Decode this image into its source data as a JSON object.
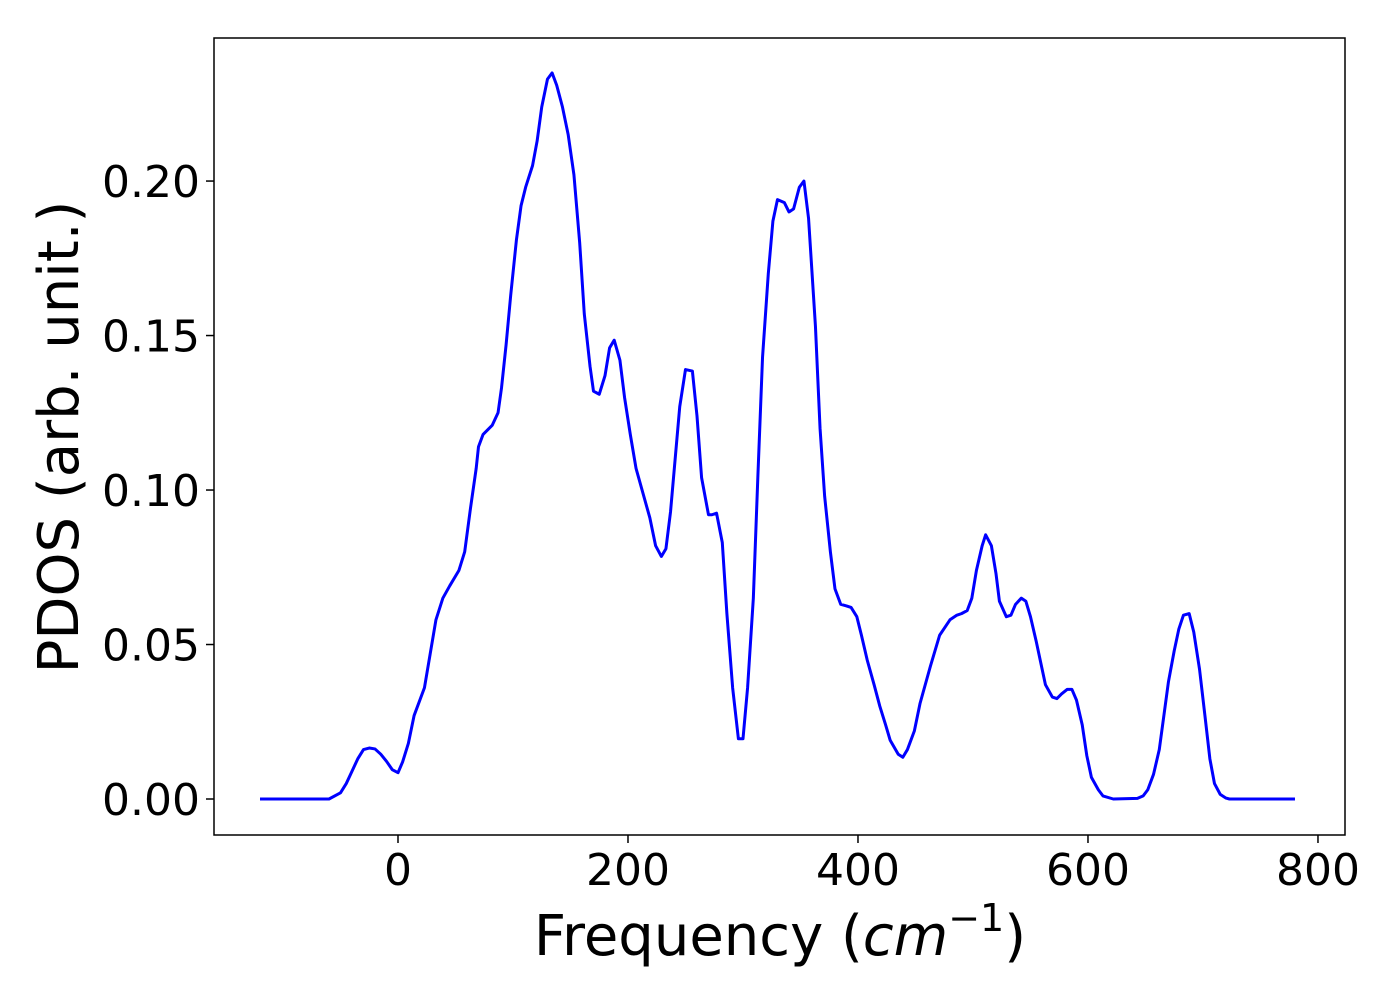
{
  "chart_data": {
    "type": "line",
    "xlabel": {
      "text": "Frequency (",
      "math": "cm",
      "sup": "−1",
      "close": ")"
    },
    "ylabel": "PDOS (arb. unit.)",
    "x": [
      -120,
      -60,
      -50,
      -45,
      -40,
      -35,
      -30,
      -25,
      -20,
      -15,
      -10,
      -5,
      0,
      4,
      9,
      14,
      23,
      28,
      33,
      39,
      45,
      53,
      58,
      63,
      68,
      70,
      74,
      82,
      87,
      90,
      94,
      98,
      103,
      107,
      111,
      117,
      121,
      125,
      130,
      134,
      138,
      143,
      148,
      153,
      158,
      162,
      167,
      170,
      175,
      180,
      184,
      188,
      193,
      197,
      202,
      207,
      213,
      219,
      224,
      229,
      233,
      237,
      241,
      245,
      250,
      256,
      260,
      264,
      270,
      273,
      277,
      282,
      286,
      291,
      296,
      300,
      304,
      309,
      313,
      317,
      322,
      326,
      330,
      336,
      340,
      344,
      349,
      353,
      357,
      363,
      367,
      371,
      376,
      380,
      385,
      390,
      394,
      399,
      403,
      408,
      414,
      419,
      424,
      428,
      435,
      439,
      443,
      449,
      454,
      463,
      471,
      480,
      486,
      490,
      495,
      499,
      503,
      508,
      511,
      516,
      520,
      523,
      529,
      533,
      537,
      542,
      546,
      550,
      555,
      559,
      563,
      569,
      573,
      577,
      582,
      586,
      590,
      595,
      599,
      603,
      609,
      613,
      622,
      643,
      648,
      652,
      657,
      662,
      666,
      670,
      675,
      679,
      683,
      688,
      692,
      697,
      702,
      706,
      710,
      715,
      720,
      723,
      780
    ],
    "series": [
      {
        "name": "PDOS",
        "color": "#0000ff",
        "values": [
          0,
          0,
          0.002,
          0.005,
          0.009,
          0.013,
          0.016,
          0.0165,
          0.0162,
          0.0145,
          0.0122,
          0.0095,
          0.0085,
          0.012,
          0.018,
          0.027,
          0.036,
          0.047,
          0.058,
          0.065,
          0.069,
          0.074,
          0.08,
          0.094,
          0.107,
          0.114,
          0.118,
          0.121,
          0.125,
          0.133,
          0.147,
          0.163,
          0.181,
          0.192,
          0.198,
          0.205,
          0.213,
          0.224,
          0.233,
          0.235,
          0.231,
          0.224,
          0.215,
          0.202,
          0.18,
          0.157,
          0.14,
          0.132,
          0.131,
          0.137,
          0.146,
          0.1485,
          0.142,
          0.13,
          0.118,
          0.107,
          0.099,
          0.091,
          0.082,
          0.0785,
          0.081,
          0.093,
          0.11,
          0.127,
          0.139,
          0.1385,
          0.124,
          0.104,
          0.092,
          0.092,
          0.0925,
          0.083,
          0.06,
          0.036,
          0.0195,
          0.0195,
          0.036,
          0.065,
          0.105,
          0.143,
          0.17,
          0.187,
          0.194,
          0.193,
          0.19,
          0.191,
          0.198,
          0.2,
          0.188,
          0.153,
          0.12,
          0.098,
          0.08,
          0.068,
          0.063,
          0.0625,
          0.062,
          0.059,
          0.053,
          0.045,
          0.037,
          0.03,
          0.024,
          0.019,
          0.0145,
          0.0135,
          0.016,
          0.022,
          0.031,
          0.043,
          0.053,
          0.058,
          0.0595,
          0.06,
          0.061,
          0.065,
          0.074,
          0.082,
          0.0855,
          0.082,
          0.073,
          0.064,
          0.059,
          0.0595,
          0.063,
          0.065,
          0.064,
          0.059,
          0.051,
          0.044,
          0.037,
          0.033,
          0.0325,
          0.034,
          0.0355,
          0.0355,
          0.032,
          0.024,
          0.014,
          0.007,
          0.003,
          0.001,
          0,
          0.0002,
          0.001,
          0.003,
          0.008,
          0.016,
          0.027,
          0.038,
          0.048,
          0.055,
          0.0595,
          0.06,
          0.054,
          0.042,
          0.026,
          0.013,
          0.005,
          0.0015,
          0.0003,
          0,
          0
        ]
      }
    ],
    "xlim": [
      -160,
      823.5
    ],
    "ylim": [
      -0.01165,
      0.2463
    ],
    "xticks": [
      0,
      200,
      400,
      600,
      800
    ],
    "yticks": [
      {
        "value": 0,
        "label": "0.00"
      },
      {
        "value": 0.05,
        "label": "0.05"
      },
      {
        "value": 0.1,
        "label": "0.10"
      },
      {
        "value": 0.15,
        "label": "0.15"
      },
      {
        "value": 0.2,
        "label": "0.20"
      }
    ]
  }
}
